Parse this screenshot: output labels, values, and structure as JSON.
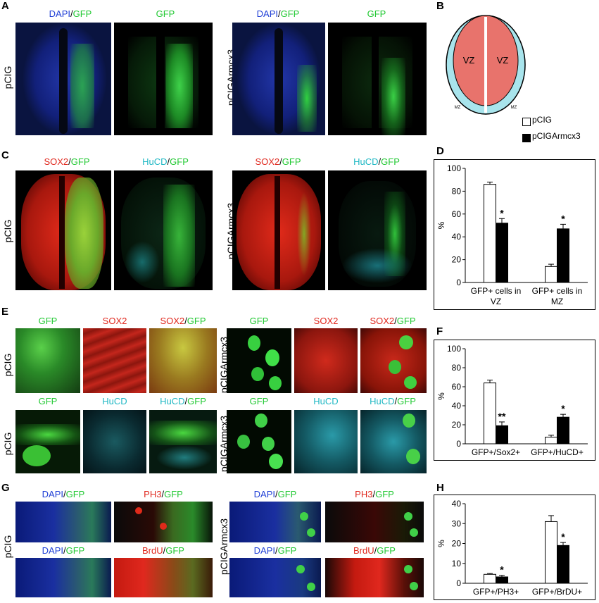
{
  "panels": {
    "A": {
      "letter": "A",
      "row_labels": [
        "pCIG",
        "pCIGArmcx3"
      ],
      "captions": [
        [
          {
            "t": "DAPI",
            "c": "blue"
          },
          {
            "t": "/",
            "c": "black"
          },
          {
            "t": "GFP",
            "c": "green"
          }
        ],
        [
          {
            "t": "GFP",
            "c": "green"
          }
        ],
        [
          {
            "t": "DAPI",
            "c": "blue"
          },
          {
            "t": "/",
            "c": "black"
          },
          {
            "t": "GFP",
            "c": "green"
          }
        ],
        [
          {
            "t": "GFP",
            "c": "green"
          }
        ]
      ]
    },
    "B": {
      "letter": "B",
      "zone_vz": "VZ",
      "zone_mz": "MZ",
      "legend": [
        "pCIG",
        "pCIGArmcx3"
      ]
    },
    "C": {
      "letter": "C",
      "row_labels": [
        "pCIG",
        "pCIGArmcx3"
      ],
      "captions": [
        [
          {
            "t": "SOX2",
            "c": "red"
          },
          {
            "t": "/",
            "c": "black"
          },
          {
            "t": "GFP",
            "c": "green"
          }
        ],
        [
          {
            "t": "HuCD",
            "c": "cyan"
          },
          {
            "t": "/",
            "c": "black"
          },
          {
            "t": "GFP",
            "c": "green"
          }
        ],
        [
          {
            "t": "SOX2",
            "c": "red"
          },
          {
            "t": "/",
            "c": "black"
          },
          {
            "t": "GFP",
            "c": "green"
          }
        ],
        [
          {
            "t": "HuCD",
            "c": "cyan"
          },
          {
            "t": "/",
            "c": "black"
          },
          {
            "t": "GFP",
            "c": "green"
          }
        ]
      ]
    },
    "E": {
      "letter": "E",
      "row_labels": [
        "pCIG",
        "pCIGArmcx3",
        "pCIG",
        "pCIGArmcx3"
      ],
      "captions_top": [
        [
          {
            "t": "GFP",
            "c": "green"
          }
        ],
        [
          {
            "t": "SOX2",
            "c": "red"
          }
        ],
        [
          {
            "t": "SOX2",
            "c": "red"
          },
          {
            "t": "/",
            "c": "black"
          },
          {
            "t": "GFP",
            "c": "green"
          }
        ],
        [
          {
            "t": "GFP",
            "c": "green"
          }
        ],
        [
          {
            "t": "SOX2",
            "c": "red"
          }
        ],
        [
          {
            "t": "SOX2",
            "c": "red"
          },
          {
            "t": "/",
            "c": "black"
          },
          {
            "t": "GFP",
            "c": "green"
          }
        ]
      ],
      "captions_bottom": [
        [
          {
            "t": "GFP",
            "c": "green"
          }
        ],
        [
          {
            "t": "HuCD",
            "c": "cyan"
          }
        ],
        [
          {
            "t": "HuCD",
            "c": "cyan"
          },
          {
            "t": "/",
            "c": "black"
          },
          {
            "t": "GFP",
            "c": "green"
          }
        ],
        [
          {
            "t": "GFP",
            "c": "green"
          }
        ],
        [
          {
            "t": "HuCD",
            "c": "cyan"
          }
        ],
        [
          {
            "t": "HuCD",
            "c": "cyan"
          },
          {
            "t": "/",
            "c": "black"
          },
          {
            "t": "GFP",
            "c": "green"
          }
        ]
      ]
    },
    "G": {
      "letter": "G",
      "row_labels": [
        "pCIG",
        "pCIGArmcx3"
      ],
      "captions_top": [
        [
          {
            "t": "DAPI",
            "c": "blue"
          },
          {
            "t": "/",
            "c": "black"
          },
          {
            "t": "GFP",
            "c": "green"
          }
        ],
        [
          {
            "t": "PH3",
            "c": "red"
          },
          {
            "t": "/",
            "c": "black"
          },
          {
            "t": "GFP",
            "c": "green"
          }
        ],
        [
          {
            "t": "DAPI",
            "c": "blue"
          },
          {
            "t": "/",
            "c": "black"
          },
          {
            "t": "GFP",
            "c": "green"
          }
        ],
        [
          {
            "t": "PH3",
            "c": "red"
          },
          {
            "t": "/",
            "c": "black"
          },
          {
            "t": "GFP",
            "c": "green"
          }
        ]
      ],
      "captions_bottom": [
        [
          {
            "t": "DAPI",
            "c": "blue"
          },
          {
            "t": "/",
            "c": "black"
          },
          {
            "t": "GFP",
            "c": "green"
          }
        ],
        [
          {
            "t": "BrdU",
            "c": "red"
          },
          {
            "t": "/",
            "c": "black"
          },
          {
            "t": "GFP",
            "c": "green"
          }
        ],
        [
          {
            "t": "DAPI",
            "c": "blue"
          },
          {
            "t": "/",
            "c": "black"
          },
          {
            "t": "GFP",
            "c": "green"
          }
        ],
        [
          {
            "t": "BrdU",
            "c": "red"
          },
          {
            "t": "/",
            "c": "black"
          },
          {
            "t": "GFP",
            "c": "green"
          }
        ]
      ]
    },
    "D": {
      "letter": "D"
    },
    "F": {
      "letter": "F"
    },
    "H": {
      "letter": "H"
    }
  },
  "colors": {
    "blue": "#1f3fd6",
    "green": "#22c933",
    "red": "#e0281e",
    "cyan": "#20b8c4",
    "black": "#000000",
    "vz_fill": "#e8736c",
    "mz_fill": "#a8e4ec"
  },
  "chart_data": [
    {
      "id": "D",
      "type": "bar",
      "categories": [
        "GFP+ cells in VZ",
        "GFP+ cells in MZ"
      ],
      "category_lines": [
        [
          "GFP+ cells in",
          "VZ"
        ],
        [
          "GFP+ cells in",
          "MZ"
        ]
      ],
      "series": [
        {
          "name": "pCIG",
          "values": [
            86,
            14
          ],
          "errors": [
            2,
            2
          ],
          "color": "#ffffff"
        },
        {
          "name": "pCIGArmcx3",
          "values": [
            52,
            47
          ],
          "errors": [
            4,
            4
          ],
          "color": "#000000"
        }
      ],
      "significance": [
        [
          "",
          "*"
        ],
        [
          "",
          "*"
        ]
      ],
      "ylabel": "%",
      "ylim": [
        0,
        100
      ],
      "yticks": [
        0,
        20,
        40,
        60,
        80,
        100
      ]
    },
    {
      "id": "F",
      "type": "bar",
      "categories": [
        "GFP+/Sox2+",
        "GFP+/HuCD+"
      ],
      "category_lines": [
        [
          "GFP+/Sox2+"
        ],
        [
          "GFP+/HuCD+"
        ]
      ],
      "series": [
        {
          "name": "pCIG",
          "values": [
            64,
            7
          ],
          "errors": [
            3,
            2
          ],
          "color": "#ffffff"
        },
        {
          "name": "pCIGArmcx3",
          "values": [
            19,
            28
          ],
          "errors": [
            4,
            3
          ],
          "color": "#000000"
        }
      ],
      "significance": [
        [
          "",
          "**"
        ],
        [
          "",
          "*"
        ]
      ],
      "ylabel": "%",
      "ylim": [
        0,
        100
      ],
      "yticks": [
        0,
        20,
        40,
        60,
        80,
        100
      ]
    },
    {
      "id": "H",
      "type": "bar",
      "categories": [
        "GFP+/PH3+",
        "GFP+/BrDU+"
      ],
      "category_lines": [
        [
          "GFP+/PH3+"
        ],
        [
          "GFP+/BrDU+"
        ]
      ],
      "series": [
        {
          "name": "pCIG",
          "values": [
            4.5,
            31
          ],
          "errors": [
            0.4,
            3
          ],
          "color": "#ffffff"
        },
        {
          "name": "pCIGArmcx3",
          "values": [
            3.2,
            19
          ],
          "errors": [
            0.8,
            1.5
          ],
          "color": "#000000"
        }
      ],
      "significance": [
        [
          "",
          "*"
        ],
        [
          "",
          "*"
        ]
      ],
      "ylabel": "%",
      "ylim": [
        0,
        40
      ],
      "yticks": [
        0,
        10,
        20,
        30,
        40
      ]
    }
  ]
}
